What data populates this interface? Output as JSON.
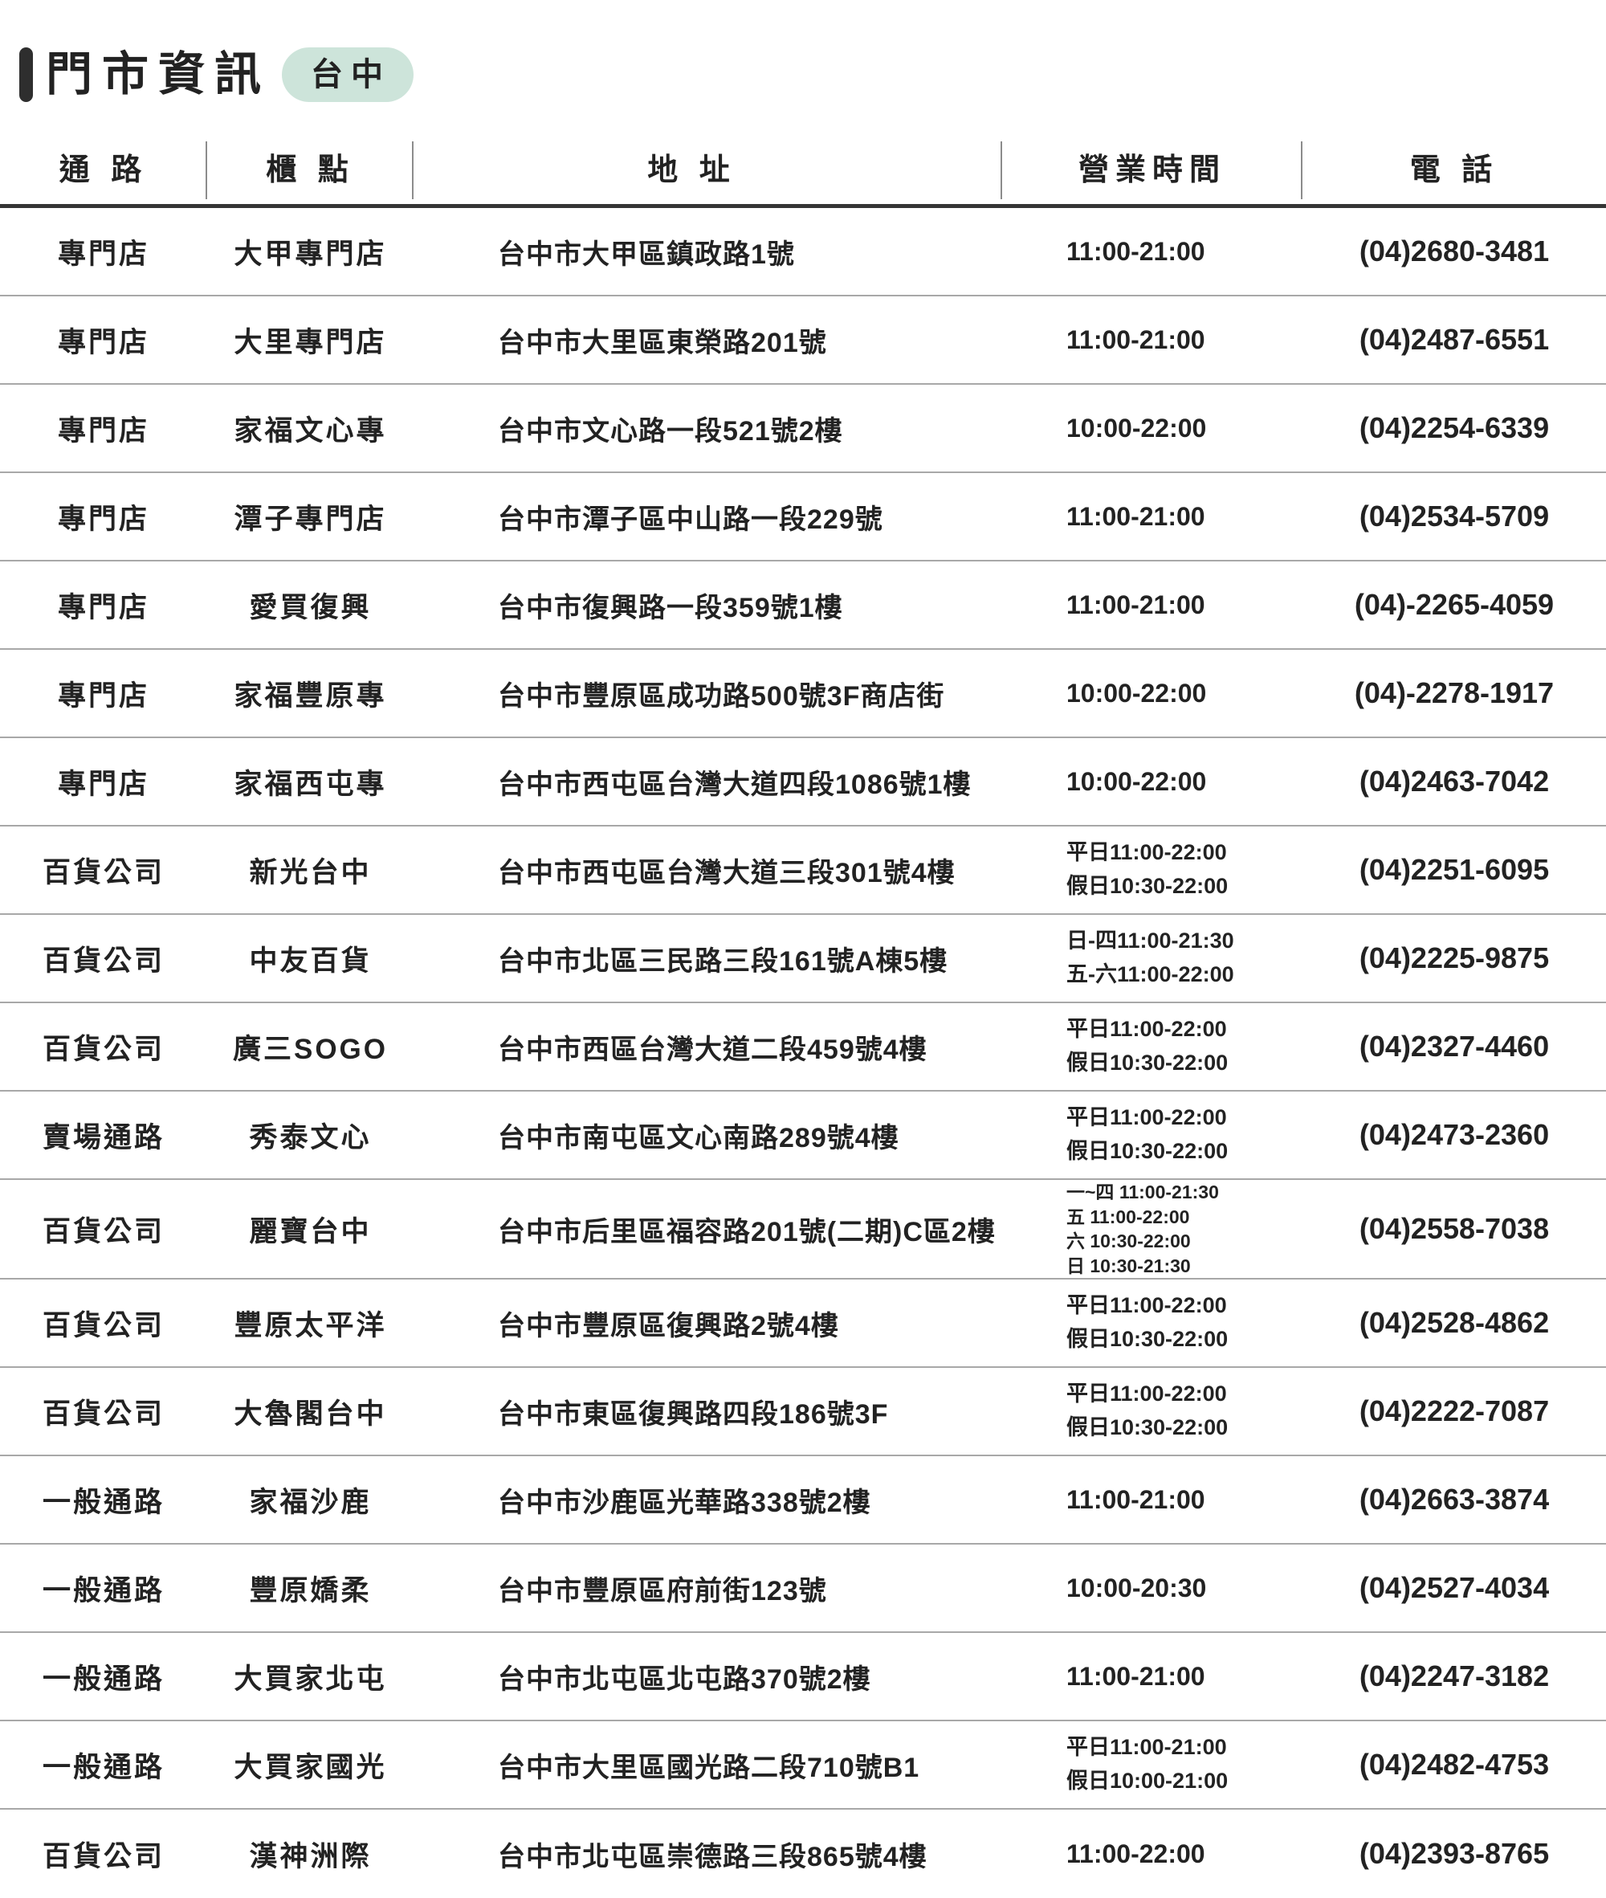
{
  "page": {
    "title": "門市資訊",
    "badge": "台中",
    "badge_color": "#cde4da",
    "text_color": "#222222"
  },
  "table": {
    "columns": [
      "通 路",
      "櫃 點",
      "地 址",
      "營業時間",
      "電 話"
    ],
    "rows": [
      {
        "channel": "專門店",
        "store": "大甲專門店",
        "address": "台中市大甲區鎮政路1號",
        "hours": [
          "11:00-21:00"
        ],
        "phone": "(04)2680-3481"
      },
      {
        "channel": "專門店",
        "store": "大里專門店",
        "address": "台中市大里區東榮路201號",
        "hours": [
          "11:00-21:00"
        ],
        "phone": "(04)2487-6551"
      },
      {
        "channel": "專門店",
        "store": "家福文心專",
        "address": "台中市文心路一段521號2樓",
        "hours": [
          "10:00-22:00"
        ],
        "phone": "(04)2254-6339"
      },
      {
        "channel": "專門店",
        "store": "潭子專門店",
        "address": "台中市潭子區中山路一段229號",
        "hours": [
          "11:00-21:00"
        ],
        "phone": "(04)2534-5709"
      },
      {
        "channel": "專門店",
        "store": "愛買復興",
        "address": "台中市復興路一段359號1樓",
        "hours": [
          "11:00-21:00"
        ],
        "phone": "(04)-2265-4059"
      },
      {
        "channel": "專門店",
        "store": "家福豐原專",
        "address": "台中市豐原區成功路500號3F商店街",
        "hours": [
          "10:00-22:00"
        ],
        "phone": "(04)-2278-1917"
      },
      {
        "channel": "專門店",
        "store": "家福西屯專",
        "address": "台中市西屯區台灣大道四段1086號1樓",
        "hours": [
          "10:00-22:00"
        ],
        "phone": "(04)2463-7042"
      },
      {
        "channel": "百貨公司",
        "store": "新光台中",
        "address": "台中市西屯區台灣大道三段301號4樓",
        "hours": [
          "平日11:00-22:00",
          "假日10:30-22:00"
        ],
        "phone": "(04)2251-6095"
      },
      {
        "channel": "百貨公司",
        "store": "中友百貨",
        "address": "台中市北區三民路三段161號A棟5樓",
        "hours": [
          "日-四11:00-21:30",
          "五-六11:00-22:00"
        ],
        "phone": "(04)2225-9875"
      },
      {
        "channel": "百貨公司",
        "store": "廣三SOGO",
        "address": "台中市西區台灣大道二段459號4樓",
        "hours": [
          "平日11:00-22:00",
          "假日10:30-22:00"
        ],
        "phone": "(04)2327-4460"
      },
      {
        "channel": "賣場通路",
        "store": "秀泰文心",
        "address": "台中市南屯區文心南路289號4樓",
        "hours": [
          "平日11:00-22:00",
          "假日10:30-22:00"
        ],
        "phone": "(04)2473-2360"
      },
      {
        "channel": "百貨公司",
        "store": "麗寶台中",
        "address": "台中市后里區福容路201號(二期)C區2樓",
        "hours": [
          "一~四 11:00-21:30",
          "五 11:00-22:00",
          "六 10:30-22:00",
          "日 10:30-21:30"
        ],
        "phone": "(04)2558-7038"
      },
      {
        "channel": "百貨公司",
        "store": "豐原太平洋",
        "address": "台中市豐原區復興路2號4樓",
        "hours": [
          "平日11:00-22:00",
          "假日10:30-22:00"
        ],
        "phone": "(04)2528-4862"
      },
      {
        "channel": "百貨公司",
        "store": "大魯閣台中",
        "address": "台中市東區復興路四段186號3F",
        "hours": [
          "平日11:00-22:00",
          "假日10:30-22:00"
        ],
        "phone": "(04)2222-7087"
      },
      {
        "channel": "一般通路",
        "store": "家福沙鹿",
        "address": "台中市沙鹿區光華路338號2樓",
        "hours": [
          "11:00-21:00"
        ],
        "phone": "(04)2663-3874"
      },
      {
        "channel": "一般通路",
        "store": "豐原嬌柔",
        "address": "台中市豐原區府前街123號",
        "hours": [
          "10:00-20:30"
        ],
        "phone": "(04)2527-4034"
      },
      {
        "channel": "一般通路",
        "store": "大買家北屯",
        "address": "台中市北屯區北屯路370號2樓",
        "hours": [
          "11:00-21:00"
        ],
        "phone": "(04)2247-3182"
      },
      {
        "channel": "一般通路",
        "store": "大買家國光",
        "address": "台中市大里區國光路二段710號B1",
        "hours": [
          "平日11:00-21:00",
          "假日10:00-21:00"
        ],
        "phone": "(04)2482-4753"
      },
      {
        "channel": "百貨公司",
        "store": "漢神洲際",
        "address": "台中市北屯區崇德路三段865號4樓",
        "hours": [
          "11:00-22:00"
        ],
        "phone": "(04)2393-8765"
      }
    ]
  }
}
